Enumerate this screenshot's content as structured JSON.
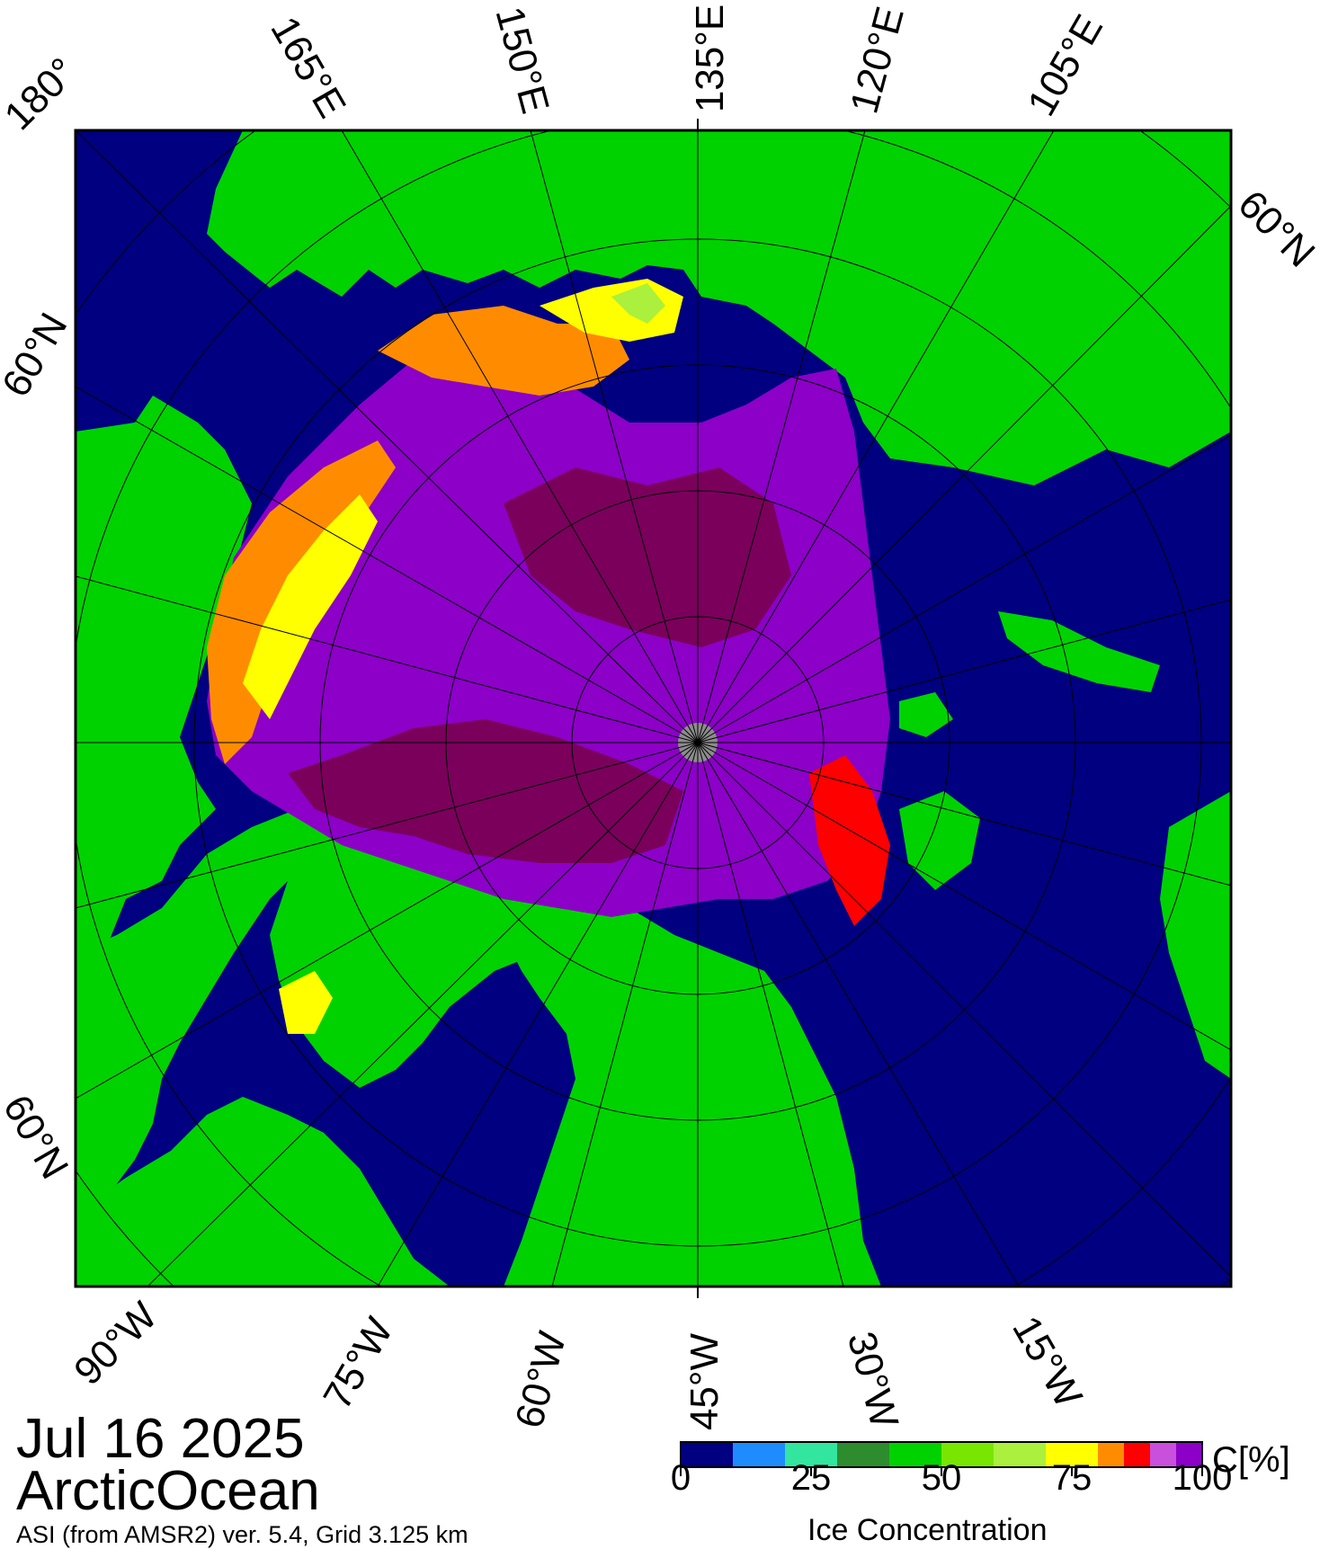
{
  "map": {
    "date": "Jul 16 2025",
    "region": "ArcticOcean",
    "source": "ASI (from AMSR2) ver. 5.4,  Grid 3.125 km",
    "colors": {
      "ocean": "#000080",
      "land": "#00d200",
      "pole_hole": "#8c8c8c",
      "frame": "#000000"
    },
    "longitude_labels_top": [
      "180°",
      "165°E",
      "150°E",
      "135°E",
      "120°E",
      "105°E"
    ],
    "longitude_labels_bottom": [
      "90°W",
      "75°W",
      "60°W",
      "45°W",
      "30°W",
      "15°W"
    ],
    "latitude_labels": [
      "60°N",
      "60°N",
      "60°N"
    ]
  },
  "legend": {
    "title": "Ice Concentration",
    "unit": "C[%]",
    "range": [
      0,
      100
    ],
    "ticks": [
      "0",
      "25",
      "50",
      "75",
      "100"
    ],
    "bins": [
      {
        "from": 0,
        "to": 10,
        "color": "#000080"
      },
      {
        "from": 10,
        "to": 20,
        "color": "#1e8cff"
      },
      {
        "from": 20,
        "to": 30,
        "color": "#32e6a0"
      },
      {
        "from": 30,
        "to": 40,
        "color": "#2d8c2d"
      },
      {
        "from": 40,
        "to": 50,
        "color": "#00d200"
      },
      {
        "from": 50,
        "to": 60,
        "color": "#78e600"
      },
      {
        "from": 60,
        "to": 70,
        "color": "#aaf03c"
      },
      {
        "from": 70,
        "to": 80,
        "color": "#ffff00"
      },
      {
        "from": 80,
        "to": 85,
        "color": "#ff8c00"
      },
      {
        "from": 85,
        "to": 90,
        "color": "#ff0000"
      },
      {
        "from": 90,
        "to": 95,
        "color": "#c850dc"
      },
      {
        "from": 95,
        "to": 100,
        "color": "#8c00c8"
      }
    ]
  }
}
